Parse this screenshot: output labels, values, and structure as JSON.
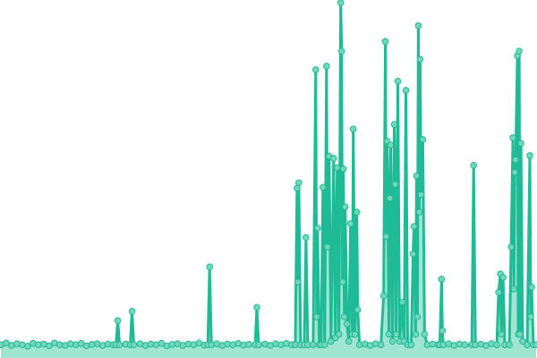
{
  "chart_data": {
    "type": "line",
    "title": "",
    "xlabel": "",
    "ylabel": "",
    "xlim": [
      0,
      600
    ],
    "ylim": [
      0,
      100
    ],
    "grid": false,
    "axes_visible": false,
    "area_fill": true,
    "markers": true,
    "colors": {
      "line": "#1fbb96",
      "area": "#8fe0c9",
      "marker_fill": "#72d8bc",
      "marker_stroke": "#1fb894"
    },
    "series": [
      {
        "points": [
          [
            0,
            2
          ],
          [
            6,
            2.5
          ],
          [
            12,
            1.8
          ],
          [
            18,
            2.3
          ],
          [
            24,
            2
          ],
          [
            30,
            1.6
          ],
          [
            36,
            2.4
          ],
          [
            42,
            2
          ],
          [
            48,
            2.2
          ],
          [
            54,
            1.7
          ],
          [
            60,
            2.5
          ],
          [
            66,
            2
          ],
          [
            72,
            1.8
          ],
          [
            78,
            2.3
          ],
          [
            84,
            2
          ],
          [
            90,
            2.4
          ],
          [
            96,
            1.7
          ],
          [
            102,
            2.1
          ],
          [
            108,
            2.3
          ],
          [
            114,
            1.8
          ],
          [
            120,
            2.2
          ],
          [
            126,
            2
          ],
          [
            129,
            2
          ],
          [
            131,
            8.9
          ],
          [
            133,
            2
          ],
          [
            140,
            2.2
          ],
          [
            145,
            2
          ],
          [
            147,
            11.6
          ],
          [
            149,
            2
          ],
          [
            156,
            2.3
          ],
          [
            162,
            1.8
          ],
          [
            168,
            2.2
          ],
          [
            174,
            2
          ],
          [
            180,
            2.4
          ],
          [
            186,
            1.7
          ],
          [
            192,
            2.1
          ],
          [
            198,
            2.3
          ],
          [
            204,
            1.8
          ],
          [
            210,
            2.2
          ],
          [
            216,
            2
          ],
          [
            222,
            2.5
          ],
          [
            228,
            1.9
          ],
          [
            232,
            2
          ],
          [
            234,
            24.3
          ],
          [
            236,
            2
          ],
          [
            242,
            2.3
          ],
          [
            248,
            1.8
          ],
          [
            254,
            2.2
          ],
          [
            260,
            2
          ],
          [
            266,
            2.4
          ],
          [
            272,
            1.9
          ],
          [
            278,
            2.1
          ],
          [
            285,
            2
          ],
          [
            287,
            12.7
          ],
          [
            289,
            2
          ],
          [
            296,
            2.2
          ],
          [
            302,
            1.8
          ],
          [
            308,
            2.3
          ],
          [
            314,
            2
          ],
          [
            320,
            2.4
          ],
          [
            326,
            2
          ],
          [
            330,
            2
          ],
          [
            332,
            46.8
          ],
          [
            333,
            20
          ],
          [
            334,
            48.4
          ],
          [
            336,
            2
          ],
          [
            340,
            2
          ],
          [
            342,
            32.7
          ],
          [
            344,
            2
          ],
          [
            350,
            2
          ],
          [
            353,
            80.8
          ],
          [
            354,
            10
          ],
          [
            355,
            35.4
          ],
          [
            357,
            2
          ],
          [
            359,
            2
          ],
          [
            361,
            47.1
          ],
          [
            363,
            2
          ],
          [
            365,
            81.8
          ],
          [
            366,
            30
          ],
          [
            368,
            56
          ],
          [
            370,
            3
          ],
          [
            373,
            55.4
          ],
          [
            375,
            4
          ],
          [
            377,
            52.7
          ],
          [
            379,
            5
          ],
          [
            381,
            100
          ],
          [
            382,
            86.1
          ],
          [
            383,
            20
          ],
          [
            384,
            52.4
          ],
          [
            385,
            10
          ],
          [
            386,
            41.5
          ],
          [
            388,
            8
          ],
          [
            390,
            3
          ],
          [
            392,
            36.7
          ],
          [
            394,
            5
          ],
          [
            395,
            63.8
          ],
          [
            397,
            5
          ],
          [
            399,
            40
          ],
          [
            400,
            12
          ],
          [
            402,
            2
          ],
          [
            408,
            2.2
          ],
          [
            414,
            1.8
          ],
          [
            420,
            2.3
          ],
          [
            426,
            2
          ],
          [
            429,
            16
          ],
          [
            431,
            88.9
          ],
          [
            432,
            33
          ],
          [
            433,
            60.3
          ],
          [
            435,
            5
          ],
          [
            436,
            44
          ],
          [
            437,
            59.2
          ],
          [
            439,
            3
          ],
          [
            441,
            65.1
          ],
          [
            442,
            48
          ],
          [
            443,
            5
          ],
          [
            445,
            77.5
          ],
          [
            447,
            3
          ],
          [
            450,
            14.2
          ],
          [
            452,
            3
          ],
          [
            454,
            74.9
          ],
          [
            456,
            2
          ],
          [
            460,
            2
          ],
          [
            462,
            28
          ],
          [
            463,
            35.9
          ],
          [
            465,
            5
          ],
          [
            466,
            50.4
          ],
          [
            467,
            10
          ],
          [
            468,
            93.4
          ],
          [
            469,
            40
          ],
          [
            470,
            83.8
          ],
          [
            471,
            45
          ],
          [
            473,
            60.8
          ],
          [
            475,
            5
          ],
          [
            478,
            2
          ],
          [
            484,
            2.2
          ],
          [
            490,
            2
          ],
          [
            492,
            2
          ],
          [
            494,
            20.8
          ],
          [
            495,
            6
          ],
          [
            496,
            2
          ],
          [
            502,
            2.3
          ],
          [
            508,
            1.8
          ],
          [
            514,
            2.2
          ],
          [
            520,
            2
          ],
          [
            528,
            2
          ],
          [
            530,
            53.4
          ],
          [
            532,
            2
          ],
          [
            538,
            2.2
          ],
          [
            544,
            1.8
          ],
          [
            550,
            2.3
          ],
          [
            556,
            2
          ],
          [
            558,
            17
          ],
          [
            560,
            22.3
          ],
          [
            561,
            5
          ],
          [
            563,
            21.3
          ],
          [
            565,
            2
          ],
          [
            570,
            2
          ],
          [
            572,
            30
          ],
          [
            574,
            61.3
          ],
          [
            575,
            18
          ],
          [
            576,
            51.4
          ],
          [
            577,
            55
          ],
          [
            579,
            84.8
          ],
          [
            580,
            5
          ],
          [
            581,
            86.1
          ],
          [
            582,
            5
          ],
          [
            583,
            59.7
          ],
          [
            585,
            3
          ],
          [
            590,
            2
          ],
          [
            593,
            56.2
          ],
          [
            594,
            10
          ],
          [
            595,
            18.5
          ],
          [
            597,
            2
          ],
          [
            600,
            2
          ]
        ]
      }
    ]
  }
}
